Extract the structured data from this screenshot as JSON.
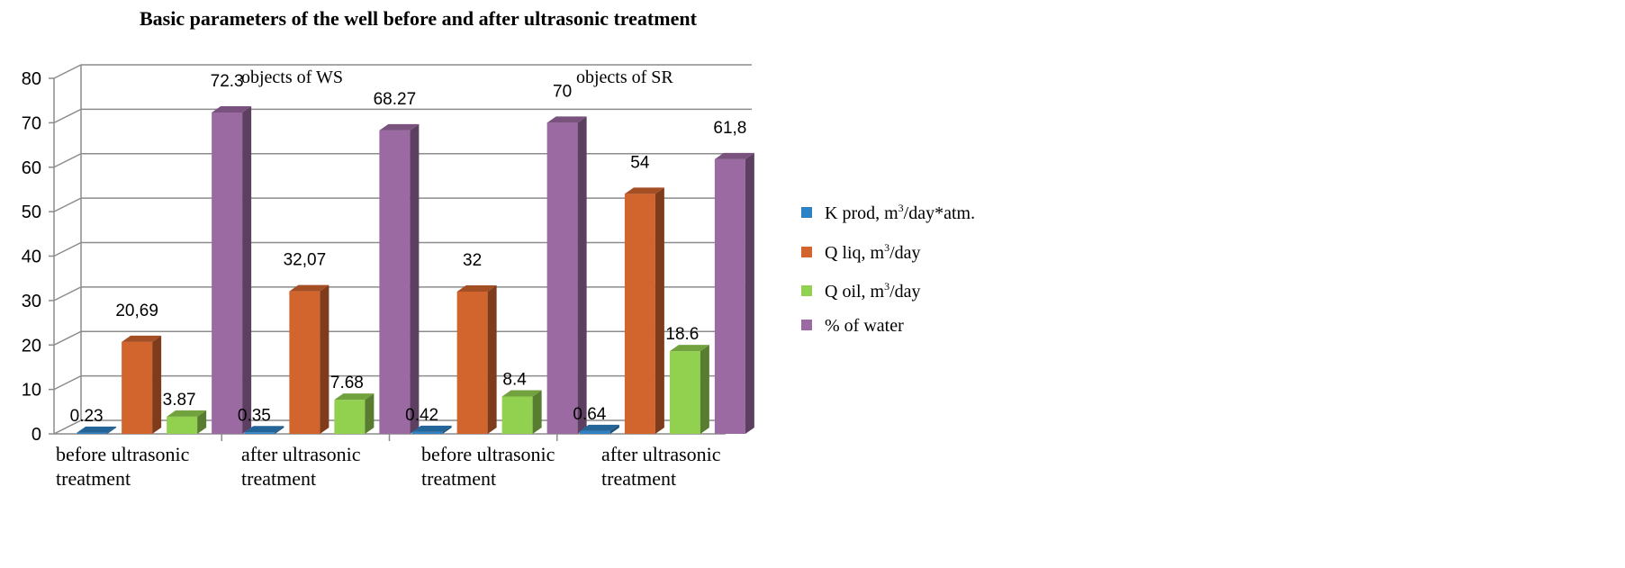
{
  "chart_data": {
    "type": "bar",
    "title": "Basic parameters of the well before and after ultrasonic treatment",
    "xlabel": "",
    "ylabel": "",
    "ylim": [
      0,
      80
    ],
    "yticks": [
      "0",
      "10",
      "20",
      "30",
      "40",
      "50",
      "60",
      "70",
      "80"
    ],
    "grid": true,
    "legend_position": "right",
    "categories": [
      [
        "before ultrasonic",
        "treatment"
      ],
      [
        "after ultrasonic",
        "treatment"
      ],
      [
        "before ultrasonic",
        "treatment"
      ],
      [
        "after ultrasonic",
        "treatment"
      ]
    ],
    "series": [
      {
        "name": "K prod, m",
        "name_sup": "3",
        "name_suffix": "/day*atm.",
        "color": "#2e82c4",
        "values": [
          0.23,
          0.35,
          0.42,
          0.64
        ],
        "labels": [
          "0.23",
          "0.35",
          "0.42",
          "0.64"
        ]
      },
      {
        "name": "Q liq, m",
        "name_sup": "3",
        "name_suffix": "/day",
        "color": "#d2642e",
        "values": [
          20.69,
          32.07,
          32,
          54
        ],
        "labels": [
          "20,69",
          "32,07",
          "32",
          "54"
        ]
      },
      {
        "name": "Q oil, m",
        "name_sup": "3",
        "name_suffix": "/day",
        "color": "#92d050",
        "values": [
          3.87,
          7.68,
          8.4,
          18.6
        ],
        "labels": [
          "3.87",
          "7.68",
          "8.4",
          "18.6"
        ]
      },
      {
        "name": "% of water",
        "name_sup": "",
        "name_suffix": "",
        "color": "#9b6aa2",
        "values": [
          72.3,
          68.27,
          70,
          61.8
        ],
        "labels": [
          "72.3",
          "68.27",
          "70",
          "61,8"
        ]
      }
    ],
    "annotations": [
      "objects of WS",
      "objects of SR"
    ]
  }
}
